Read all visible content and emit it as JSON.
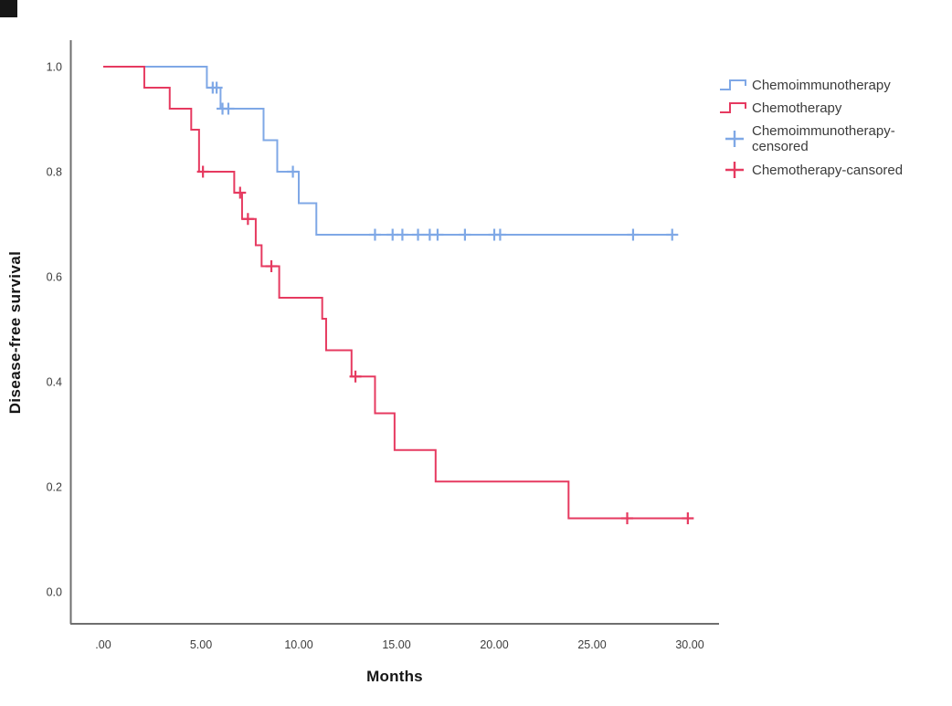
{
  "window": {
    "background": "#ffffff",
    "corner_square_color": "#161616"
  },
  "chart_data": {
    "type": "line",
    "subtype": "kaplan_meier_step",
    "title": "",
    "xlabel": "Months",
    "ylabel": "Disease-free survival",
    "grid": false,
    "legend_position": "right",
    "axis_color": "#6f6f6f",
    "tick_label_color": "#3c3c3c",
    "x_axis": {
      "min": 0,
      "max": 30,
      "tick_values": [
        0,
        5,
        10,
        15,
        20,
        25,
        30
      ],
      "tick_labels": [
        ".00",
        "5.00",
        "10.00",
        "15.00",
        "20.00",
        "25.00",
        "30.00"
      ]
    },
    "y_axis": {
      "min": 0.0,
      "max": 1.0,
      "tick_values": [
        0.0,
        0.2,
        0.4,
        0.6,
        0.8,
        1.0
      ],
      "tick_labels": [
        "0.0",
        "0.2",
        "0.4",
        "0.6",
        "0.8",
        "1.0"
      ]
    },
    "series": [
      {
        "name": "Chemoimmunotherapy",
        "color": "#7FA8E6",
        "steps": [
          [
            0.0,
            1.0
          ],
          [
            5.3,
            0.96
          ],
          [
            6.0,
            0.92
          ],
          [
            8.2,
            0.86
          ],
          [
            8.9,
            0.8
          ],
          [
            10.0,
            0.74
          ],
          [
            10.9,
            0.68
          ]
        ],
        "end_time": 29.4,
        "censored": [
          [
            5.6,
            0.96
          ],
          [
            5.8,
            0.96
          ],
          [
            6.1,
            0.92
          ],
          [
            6.4,
            0.92
          ],
          [
            9.7,
            0.8
          ],
          [
            13.9,
            0.68
          ],
          [
            14.8,
            0.68
          ],
          [
            15.3,
            0.68
          ],
          [
            16.1,
            0.68
          ],
          [
            16.7,
            0.68
          ],
          [
            17.1,
            0.68
          ],
          [
            18.5,
            0.68
          ],
          [
            20.0,
            0.68
          ],
          [
            20.3,
            0.68
          ],
          [
            27.1,
            0.68
          ],
          [
            29.1,
            0.68
          ]
        ]
      },
      {
        "name": "Chemotherapy",
        "color": "#E63A60",
        "steps": [
          [
            0.0,
            1.0
          ],
          [
            2.1,
            0.96
          ],
          [
            3.4,
            0.92
          ],
          [
            4.5,
            0.88
          ],
          [
            4.9,
            0.8
          ],
          [
            6.7,
            0.76
          ],
          [
            7.1,
            0.71
          ],
          [
            7.8,
            0.66
          ],
          [
            8.1,
            0.62
          ],
          [
            9.0,
            0.56
          ],
          [
            11.2,
            0.52
          ],
          [
            11.4,
            0.46
          ],
          [
            12.7,
            0.41
          ],
          [
            13.9,
            0.34
          ],
          [
            14.9,
            0.27
          ],
          [
            17.0,
            0.21
          ],
          [
            23.8,
            0.14
          ]
        ],
        "end_time": 30.0,
        "censored": [
          [
            5.1,
            0.8
          ],
          [
            7.0,
            0.76
          ],
          [
            7.4,
            0.71
          ],
          [
            8.6,
            0.62
          ],
          [
            12.9,
            0.41
          ],
          [
            26.8,
            0.14
          ],
          [
            29.9,
            0.14
          ]
        ]
      }
    ],
    "legend": [
      {
        "label": "Chemoimmunotherapy",
        "marker": "step-line",
        "series": "Chemoimmunotherapy"
      },
      {
        "label": "Chemotherapy",
        "marker": "step-line",
        "series": "Chemotherapy"
      },
      {
        "label": "Chemoimmunotherapy-censored",
        "marker": "plus",
        "series": "Chemoimmunotherapy"
      },
      {
        "label": "Chemotherapy-cansored",
        "marker": "plus",
        "series": "Chemotherapy"
      }
    ]
  }
}
